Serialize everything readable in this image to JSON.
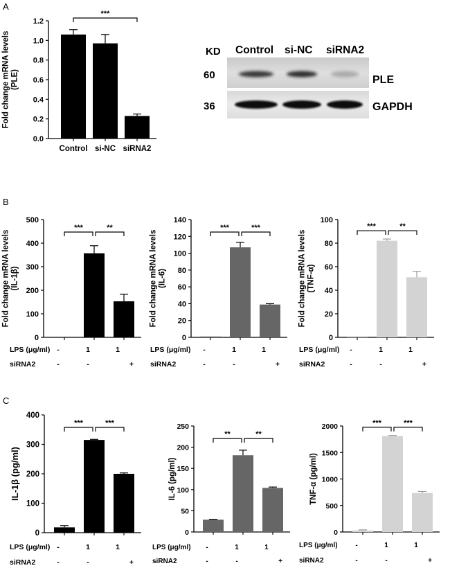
{
  "panels": {
    "a": "A",
    "b": "B",
    "c": "C"
  },
  "treatment_row_labels": {
    "lps": "LPS (μg/ml)",
    "sirna": "siRNA2"
  },
  "blot": {
    "kd_label": "KD",
    "lanes": [
      "Control",
      "si-NC",
      "siRNA2"
    ],
    "rows": [
      {
        "mw": "60",
        "protein": "PLE",
        "band_intensity": [
          0.85,
          0.9,
          0.25
        ]
      },
      {
        "mw": "36",
        "protein": "GAPDH",
        "band_intensity": [
          1.0,
          1.0,
          1.0
        ]
      }
    ]
  },
  "chart_data": [
    {
      "id": "a",
      "type": "bar",
      "ylabel": "Fold change mRNA levels\n(PLE)",
      "categories": [
        "Control",
        "si-NC",
        "siRNA2"
      ],
      "values": [
        1.06,
        0.97,
        0.23
      ],
      "errors": [
        0.05,
        0.09,
        0.02
      ],
      "ylim": [
        0,
        1.2
      ],
      "yticks": [
        "0.0",
        "0.2",
        "0.4",
        "0.6",
        "0.8",
        "1.0",
        "1.2"
      ],
      "color": "#000000",
      "significance": [
        {
          "from": 0,
          "to": 2,
          "label": "***"
        }
      ]
    },
    {
      "id": "b1",
      "type": "bar",
      "ylabel": "Fold change mRNA levels\n(IL-1β)",
      "categories": [
        "",
        "",
        ""
      ],
      "values": [
        1,
        357,
        153
      ],
      "errors": [
        0,
        32,
        30
      ],
      "ylim": [
        0,
        500
      ],
      "yticks": [
        "0",
        "100",
        "200",
        "300",
        "400",
        "500"
      ],
      "color": "#000000",
      "lps": [
        "-",
        "1",
        "1"
      ],
      "sirna": [
        "-",
        "-",
        "+"
      ],
      "significance": [
        {
          "from": 0,
          "to": 1,
          "label": "***"
        },
        {
          "from": 1,
          "to": 2,
          "label": "**"
        }
      ]
    },
    {
      "id": "b2",
      "type": "bar",
      "ylabel": "Fold change mRNA levels\n(IL-6)",
      "categories": [
        "",
        "",
        ""
      ],
      "values": [
        1,
        107,
        39
      ],
      "errors": [
        0,
        6,
        1
      ],
      "ylim": [
        0,
        140
      ],
      "yticks": [
        "0",
        "20",
        "40",
        "60",
        "80",
        "100",
        "120",
        "140"
      ],
      "color": "#666666",
      "lps": [
        "-",
        "1",
        "1"
      ],
      "sirna": [
        "-",
        "-",
        "+"
      ],
      "significance": [
        {
          "from": 0,
          "to": 1,
          "label": "***"
        },
        {
          "from": 1,
          "to": 2,
          "label": "***"
        }
      ]
    },
    {
      "id": "b3",
      "type": "bar",
      "ylabel": "Fold change mRNA levels\n(TNF-α)",
      "categories": [
        "",
        "",
        ""
      ],
      "values": [
        1,
        82,
        51
      ],
      "errors": [
        0,
        1.5,
        5
      ],
      "ylim": [
        0,
        100
      ],
      "yticks": [
        "0",
        "20",
        "40",
        "60",
        "80",
        "100"
      ],
      "color": "#d3d3d3",
      "lps": [
        "-",
        "1",
        "1"
      ],
      "sirna": [
        "-",
        "-",
        "+"
      ],
      "significance": [
        {
          "from": 0,
          "to": 1,
          "label": "***"
        },
        {
          "from": 1,
          "to": 2,
          "label": "**"
        }
      ]
    },
    {
      "id": "c1",
      "type": "bar",
      "ylabel": "IL-1β (pg/ml)",
      "categories": [
        "",
        "",
        ""
      ],
      "values": [
        18,
        315,
        200
      ],
      "errors": [
        6,
        2,
        3
      ],
      "ylim": [
        0,
        400
      ],
      "yticks": [
        "0",
        "100",
        "200",
        "300",
        "400"
      ],
      "color": "#000000",
      "lps": [
        "-",
        "1",
        "1"
      ],
      "sirna": [
        "-",
        "-",
        "+"
      ],
      "significance": [
        {
          "from": 0,
          "to": 1,
          "label": "***"
        },
        {
          "from": 1,
          "to": 2,
          "label": "***"
        }
      ]
    },
    {
      "id": "c2",
      "type": "bar",
      "ylabel": "IL-6 (pg/ml)",
      "categories": [
        "",
        "",
        ""
      ],
      "values": [
        29,
        181,
        104
      ],
      "errors": [
        1,
        12,
        2
      ],
      "ylim": [
        0,
        250
      ],
      "yticks": [
        "0",
        "50",
        "100",
        "150",
        "200",
        "250"
      ],
      "color": "#666666",
      "lps": [
        "-",
        "1",
        "1"
      ],
      "sirna": [
        "-",
        "-",
        "+"
      ],
      "significance": [
        {
          "from": 0,
          "to": 1,
          "label": "**"
        },
        {
          "from": 1,
          "to": 2,
          "label": "**"
        }
      ]
    },
    {
      "id": "c3",
      "type": "bar",
      "ylabel": "TNF-α (pg/ml)",
      "categories": [
        "",
        "",
        ""
      ],
      "values": [
        30,
        1810,
        735
      ],
      "errors": [
        10,
        10,
        30
      ],
      "ylim": [
        0,
        2000
      ],
      "yticks": [
        "0",
        "500",
        "1000",
        "1500",
        "2000"
      ],
      "color": "#d3d3d3",
      "lps": [
        "-",
        "1",
        "1"
      ],
      "sirna": [
        "-",
        "-",
        "+"
      ],
      "significance": [
        {
          "from": 0,
          "to": 1,
          "label": "***"
        },
        {
          "from": 1,
          "to": 2,
          "label": "***"
        }
      ]
    }
  ]
}
